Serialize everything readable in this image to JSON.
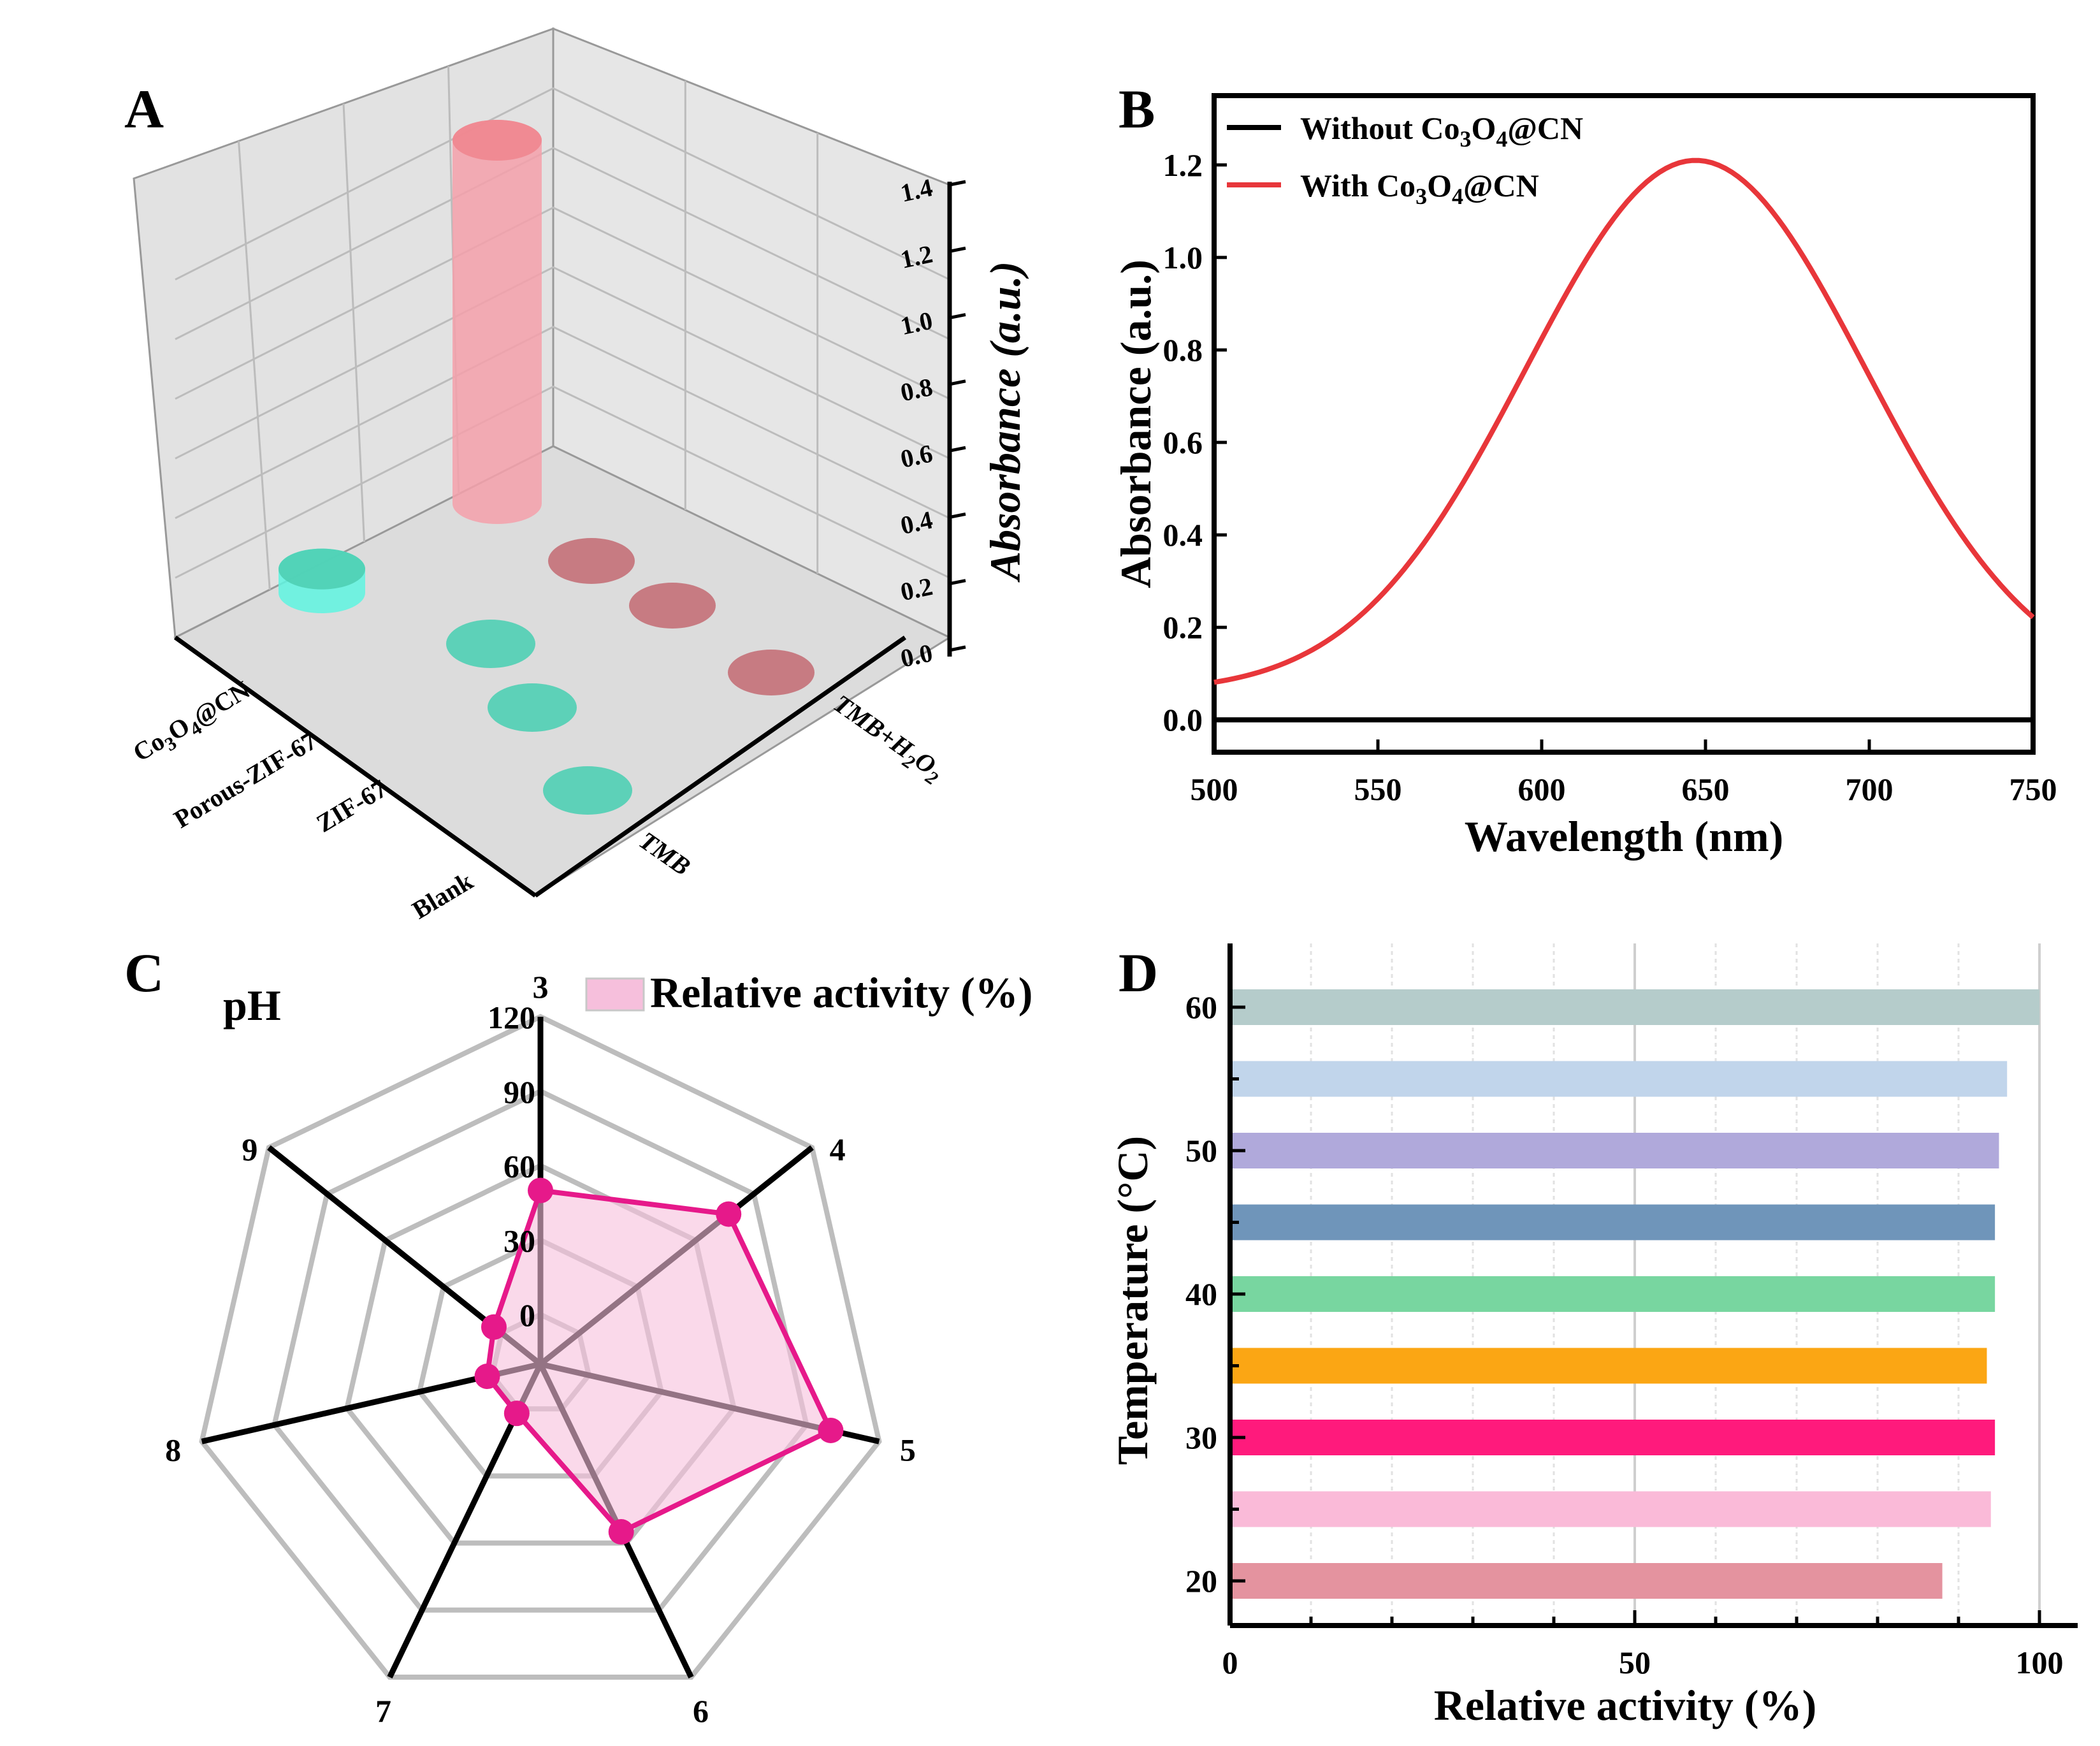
{
  "colors": {
    "green": "#4fcfb4",
    "pink_cyl": "#f4a0aa",
    "red_line": "#e8363a",
    "magenta": "#e6198a",
    "radar_fill": "#f6bfdc",
    "grid_gray": "#bdbdbd"
  },
  "panel_a": {
    "letter": "A",
    "zlabel": "Absorbance (a.u.)",
    "zticks": [
      "0.0",
      "0.2",
      "0.4",
      "0.6",
      "0.8",
      "1.0",
      "1.2",
      "1.4"
    ],
    "row_labels": [
      "Co3O4@CN",
      "Porous-ZIF-67",
      "ZIF-67",
      "Blank"
    ],
    "col_labels": [
      "TMB",
      "TMB+H2O2"
    ],
    "co3o4_label": {
      "a": "Co",
      "b": "3",
      "c": "O",
      "d": "4",
      "e": "@CN"
    },
    "tmbh2o2_label": {
      "a": "TMB+H",
      "b": "2",
      "c": "O",
      "d": "2"
    }
  },
  "panel_b": {
    "letter": "B",
    "xlabel": "Wavelength (nm)",
    "ylabel": "Absorbance (a.u.)",
    "xticks": [
      "500",
      "550",
      "600",
      "650",
      "700",
      "750"
    ],
    "yticks": [
      "0.0",
      "0.2",
      "0.4",
      "0.6",
      "0.8",
      "1.0",
      "1.2"
    ],
    "legend": [
      {
        "a": "Without Co",
        "b": "3",
        "c": "O",
        "d": "4",
        "e": "@CN"
      },
      {
        "a": "With Co",
        "b": "3",
        "c": "O",
        "d": "4",
        "e": "@CN"
      }
    ]
  },
  "panel_c": {
    "letter": "C",
    "title": "pH",
    "legend": "Relative activity (%)",
    "axis_labels": [
      "3",
      "4",
      "5",
      "6",
      "7",
      "8",
      "9"
    ],
    "ring_labels": [
      "120",
      "90",
      "60",
      "30",
      "0"
    ]
  },
  "panel_d": {
    "letter": "D",
    "xlabel": "Relative activity (%)",
    "ylabel": "Temperature (°C)",
    "xticks": [
      "0",
      "50",
      "100"
    ],
    "yticks": [
      "20",
      "30",
      "40",
      "50",
      "60"
    ]
  },
  "chart_data": [
    {
      "panel": "A",
      "type": "bar",
      "subtype": "3d-cylinder",
      "zlabel": "Absorbance (a.u.)",
      "zlim": [
        0,
        1.4
      ],
      "rows": [
        "Co3O4@CN",
        "Porous-ZIF-67",
        "ZIF-67",
        "Blank"
      ],
      "series": [
        {
          "name": "TMB+H2O2",
          "color": "#f4a0aa",
          "values": [
            1.22,
            0.0,
            0.0,
            0.0
          ]
        },
        {
          "name": "TMB",
          "color": "#4fcfb4",
          "values": [
            0.08,
            0.0,
            0.0,
            0.0
          ]
        }
      ]
    },
    {
      "panel": "B",
      "type": "line",
      "xlabel": "Wavelength (nm)",
      "ylabel": "Absorbance (a.u.)",
      "xlim": [
        500,
        750
      ],
      "ylim": [
        -0.07,
        1.35
      ],
      "series": [
        {
          "name": "Without Co3O4@CN",
          "color": "#000000",
          "x": [
            500,
            550,
            600,
            650,
            700,
            750
          ],
          "y": [
            0.0,
            0.0,
            0.0,
            0.0,
            0.0,
            0.0
          ]
        },
        {
          "name": "With Co3O4@CN",
          "color": "#e8363a",
          "x": [
            500,
            525,
            550,
            575,
            600,
            625,
            650,
            675,
            700,
            725,
            750
          ],
          "y": [
            0.1,
            0.17,
            0.29,
            0.52,
            0.86,
            1.14,
            1.21,
            1.07,
            0.76,
            0.46,
            0.29
          ]
        }
      ]
    },
    {
      "panel": "C",
      "type": "radar",
      "title": "pH",
      "categories": [
        "3",
        "4",
        "5",
        "6",
        "7",
        "8",
        "9"
      ],
      "rlim": [
        -20,
        120
      ],
      "series": [
        {
          "name": "Relative activity (%)",
          "values": [
            50,
            77,
            100,
            55,
            2,
            2,
            4
          ]
        }
      ]
    },
    {
      "panel": "D",
      "type": "bar",
      "orientation": "horizontal",
      "xlabel": "Relative activity (%)",
      "ylabel": "Temperature (°C)",
      "xlim": [
        0,
        105
      ],
      "categories": [
        "20",
        "25",
        "30",
        "35",
        "40",
        "45",
        "50",
        "55",
        "60"
      ],
      "values": [
        88,
        94,
        94.5,
        93.5,
        94.5,
        94.5,
        95,
        96,
        100
      ],
      "colors": [
        "#e4939f",
        "#fabad8",
        "#ff1a7c",
        "#fba614",
        "#78d6a0",
        "#6f95ba",
        "#b0a9db",
        "#c1d5eb",
        "#b5cccb"
      ]
    }
  ]
}
